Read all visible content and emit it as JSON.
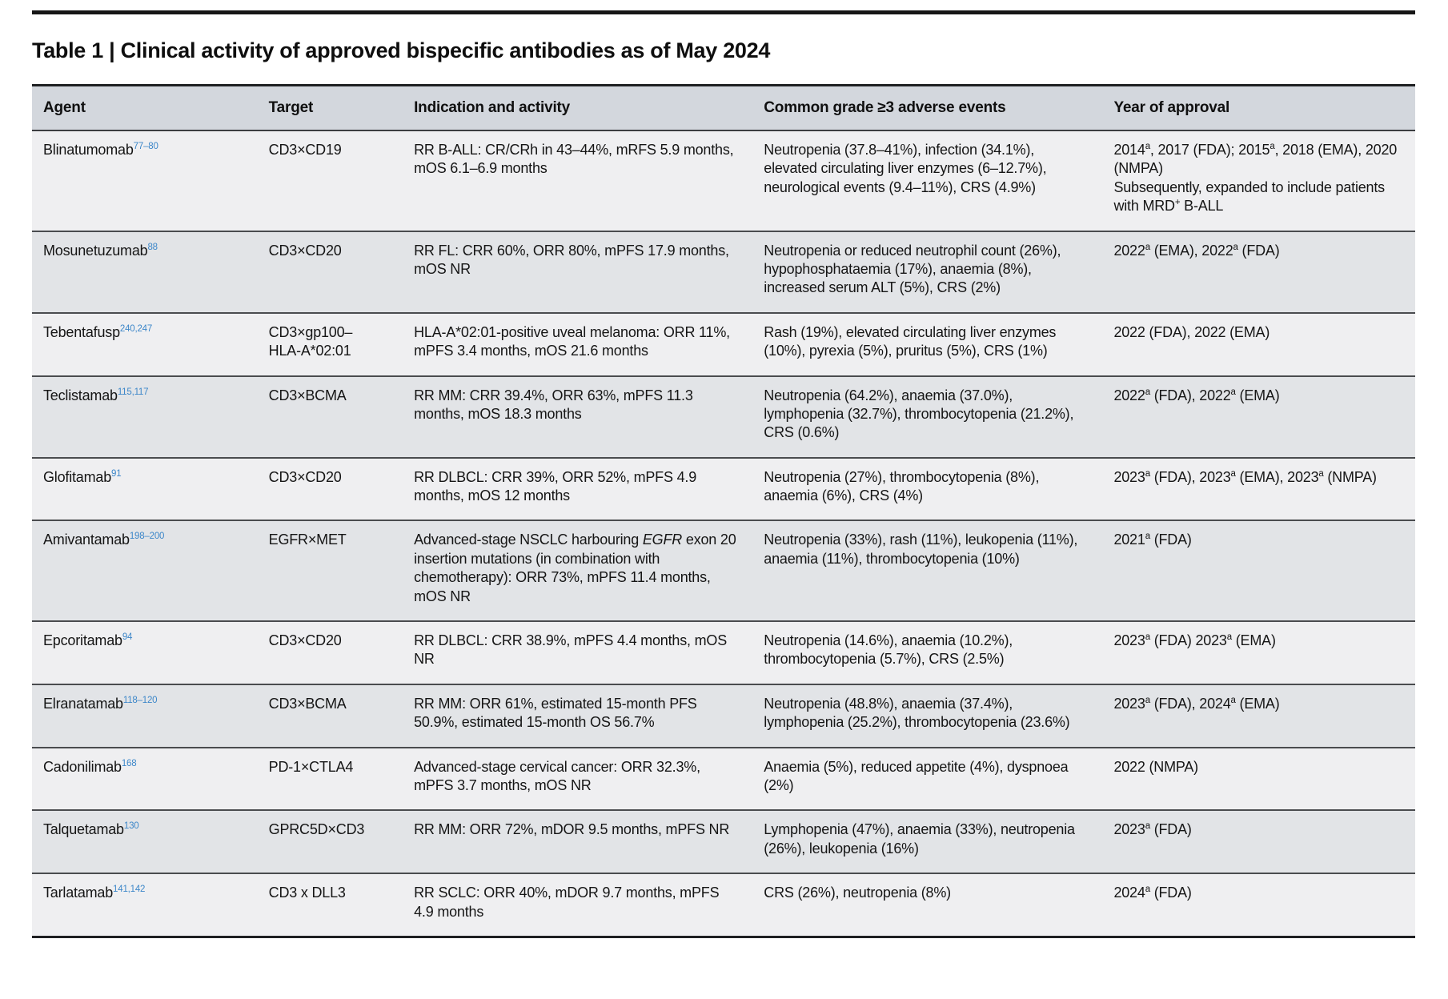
{
  "page": {
    "title": "Table 1 | Clinical activity of approved bispecific antibodies as of May 2024"
  },
  "table": {
    "colors": {
      "header_bg": "#d3d7dd",
      "row_odd": "#efeff1",
      "row_even": "#e2e4e7",
      "ref_blue": "#3d87c9",
      "rule_dark": "#1f2022"
    },
    "columns": [
      "Agent",
      "Target",
      "Indication and activity",
      "Common grade ≥3 adverse events",
      "Year of approval"
    ],
    "column_widths_pct": [
      16.3,
      10.5,
      25.3,
      25.3,
      22.6
    ],
    "rows": [
      {
        "agent": "Blinatumomab",
        "refs": "77–80",
        "target": "CD3×CD19",
        "indication": "RR B-ALL: CR/CRh in 43–44%, mRFS 5.9 months, mOS 6.1–6.9 months",
        "adverse_events": "Neutropenia (37.8–41%), infection (34.1%), elevated circulating liver enzymes (6–12.7%), neurological events (9.4–11%), CRS (4.9%)",
        "approval": "2014^{a}, 2017 (FDA); 2015^{a}, 2018 (EMA), 2020 (NMPA)\nSubsequently, expanded to include patients with MRD^{+} B-ALL"
      },
      {
        "agent": "Mosunetuzumab",
        "refs": "88",
        "target": "CD3×CD20",
        "indication": "RR FL: CRR 60%, ORR 80%, mPFS 17.9 months, mOS NR",
        "adverse_events": "Neutropenia or reduced neutrophil count (26%), hypophosphataemia (17%), anaemia (8%), increased serum ALT (5%), CRS (2%)",
        "approval": "2022^{a} (EMA), 2022^{a} (FDA)"
      },
      {
        "agent": "Tebentafusp",
        "refs": "240,247",
        "target": "CD3×gp100– HLA-A*02:01",
        "indication": "HLA-A*02:01-positive uveal melanoma: ORR 11%, mPFS 3.4 months, mOS 21.6 months",
        "adverse_events": "Rash (19%), elevated circulating liver enzymes (10%), pyrexia (5%), pruritus (5%), CRS (1%)",
        "approval": "2022 (FDA), 2022 (EMA)"
      },
      {
        "agent": "Teclistamab",
        "refs": "115,117",
        "target": "CD3×BCMA",
        "indication": "RR MM: CRR 39.4%, ORR 63%, mPFS 11.3 months, mOS 18.3 months",
        "adverse_events": "Neutropenia (64.2%), anaemia (37.0%), lymphopenia (32.7%), thrombocytopenia (21.2%), CRS (0.6%)",
        "approval": "2022^{a} (FDA), 2022^{a} (EMA)"
      },
      {
        "agent": "Glofitamab",
        "refs": "91",
        "target": "CD3×CD20",
        "indication": "RR DLBCL: CRR 39%, ORR 52%, mPFS 4.9 months, mOS 12 months",
        "adverse_events": "Neutropenia (27%), thrombocytopenia (8%), anaemia (6%), CRS (4%)",
        "approval": "2023^{a} (FDA), 2023^{a} (EMA), 2023^{a} (NMPA)"
      },
      {
        "agent": "Amivantamab",
        "refs": "198–200",
        "target": "EGFR×MET",
        "indication": "Advanced-stage NSCLC harbouring _{EGFR} exon 20 insertion mutations (in combination with chemotherapy): ORR 73%, mPFS 11.4 months, mOS NR",
        "adverse_events": "Neutropenia (33%), rash (11%), leukopenia (11%), anaemia (11%), thrombocytopenia (10%)",
        "approval": "2021^{a} (FDA)"
      },
      {
        "agent": "Epcoritamab",
        "refs": "94",
        "target": "CD3×CD20",
        "indication": "RR DLBCL: CRR 38.9%, mPFS 4.4 months, mOS NR",
        "adverse_events": "Neutropenia (14.6%), anaemia (10.2%), thrombocytopenia (5.7%), CRS (2.5%)",
        "approval": "2023^{a} (FDA) 2023^{a} (EMA)"
      },
      {
        "agent": "Elranatamab",
        "refs": "118–120",
        "target": "CD3×BCMA",
        "indication": "RR MM: ORR 61%, estimated 15-month PFS 50.9%, estimated 15-month OS 56.7%",
        "adverse_events": "Neutropenia (48.8%), anaemia (37.4%), lymphopenia (25.2%), thrombocytopenia (23.6%)",
        "approval": "2023^{a} (FDA), 2024^{a} (EMA)"
      },
      {
        "agent": "Cadonilimab",
        "refs": "168",
        "target": "PD-1×CTLA4",
        "indication": "Advanced-stage cervical cancer: ORR 32.3%, mPFS 3.7 months, mOS NR",
        "adverse_events": "Anaemia (5%), reduced appetite (4%), dyspnoea (2%)",
        "approval": "2022 (NMPA)"
      },
      {
        "agent": "Talquetamab",
        "refs": "130",
        "target": "GPRC5D×CD3",
        "indication": "RR MM: ORR 72%, mDOR 9.5 months, mPFS NR",
        "adverse_events": "Lymphopenia (47%), anaemia (33%), neutropenia (26%), leukopenia (16%)",
        "approval": "2023^{a} (FDA)"
      },
      {
        "agent": "Tarlatamab",
        "refs": "141,142",
        "target": "CD3 x DLL3",
        "indication": "RR SCLC: ORR 40%, mDOR 9.7 months, mPFS 4.9 months",
        "adverse_events": "CRS (26%), neutropenia (8%)",
        "approval": "2024^{a} (FDA)"
      }
    ]
  }
}
